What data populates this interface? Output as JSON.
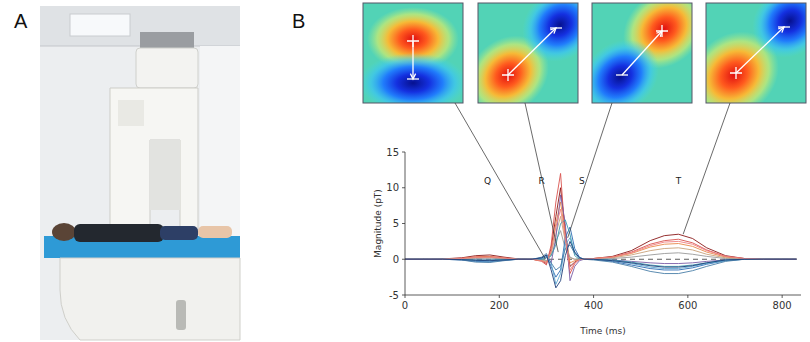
{
  "panel_labels": [
    "A",
    "B"
  ],
  "chart_data": {
    "type": "line",
    "x_label": "Time (ms)",
    "y_label": "Magnitude (pT)",
    "xlim": [
      0,
      840
    ],
    "xticks": [
      0,
      200,
      400,
      600,
      800
    ],
    "ylim": [
      -5,
      15
    ],
    "yticks": [
      -5,
      0,
      5,
      10,
      15
    ],
    "grid": false,
    "x": [
      0,
      40,
      80,
      120,
      150,
      180,
      210,
      240,
      270,
      290,
      300,
      310,
      320,
      330,
      340,
      350,
      360,
      370,
      380,
      400,
      440,
      480,
      520,
      550,
      580,
      610,
      640,
      680,
      720,
      760,
      800,
      830
    ],
    "series": [
      {
        "color": "#8b1a1a",
        "values": [
          0,
          0,
          0.05,
          0.2,
          0.5,
          0.6,
          0.3,
          0.05,
          0,
          -0.2,
          -0.6,
          1.5,
          6,
          10,
          4,
          -1,
          -0.4,
          0,
          0,
          0.1,
          0.4,
          1.2,
          2.6,
          3.3,
          3.5,
          2.9,
          1.6,
          0.5,
          0.1,
          0,
          0,
          0
        ]
      },
      {
        "color": "#d9534f",
        "values": [
          0,
          0,
          0.05,
          0.15,
          0.35,
          0.4,
          0.2,
          0,
          0,
          -0.3,
          -0.8,
          2,
          8,
          12,
          3,
          -2,
          -0.6,
          0,
          0,
          0.1,
          0.3,
          1,
          2.1,
          2.6,
          2.8,
          2.3,
          1.3,
          0.4,
          0.1,
          0,
          0,
          0
        ]
      },
      {
        "color": "#e8894a",
        "values": [
          0,
          0,
          0,
          0.1,
          0.3,
          0.35,
          0.15,
          0,
          0,
          -0.2,
          -0.4,
          1,
          5,
          8,
          3.5,
          -0.5,
          -0.2,
          0,
          0,
          0.1,
          0.3,
          0.8,
          1.7,
          2.1,
          2.2,
          1.8,
          1,
          0.3,
          0.05,
          0,
          0,
          0
        ]
      },
      {
        "color": "#c9a27a",
        "values": [
          0,
          0,
          0,
          0.05,
          0.2,
          0.25,
          0.1,
          0,
          0,
          -0.1,
          -0.3,
          0.8,
          3.5,
          6,
          2.5,
          0.2,
          0,
          0,
          0,
          0.05,
          0.2,
          0.6,
          1.2,
          1.5,
          1.6,
          1.3,
          0.7,
          0.2,
          0,
          0,
          0,
          0
        ]
      },
      {
        "color": "#9a9a9a",
        "values": [
          0,
          0,
          0,
          0,
          0.1,
          0.15,
          0.05,
          0,
          0,
          0,
          -0.2,
          0.5,
          2.5,
          4,
          1.5,
          0.3,
          0,
          0,
          0,
          0,
          0.1,
          0.3,
          0.6,
          0.8,
          0.9,
          0.7,
          0.4,
          0.1,
          0,
          0,
          0,
          0
        ]
      },
      {
        "color": "#7b5ea7",
        "values": [
          0,
          0,
          0,
          -0.05,
          -0.1,
          -0.1,
          -0.05,
          0,
          0,
          0.1,
          0.3,
          -0.5,
          3,
          9,
          5,
          -3,
          -1,
          -0.2,
          0,
          0,
          -0.1,
          -0.3,
          -0.5,
          -0.6,
          -0.6,
          -0.5,
          -0.3,
          -0.1,
          0,
          0,
          0,
          0
        ]
      },
      {
        "color": "#2f6db5",
        "values": [
          0,
          0,
          0,
          -0.1,
          -0.3,
          -0.35,
          -0.15,
          0,
          0,
          0.2,
          0.5,
          -1,
          -2.5,
          -1.5,
          3,
          4.5,
          1.5,
          0.3,
          0,
          0,
          -0.3,
          -0.8,
          -1.3,
          -1.5,
          -1.5,
          -1.2,
          -0.7,
          -0.2,
          0,
          0,
          0,
          0
        ]
      },
      {
        "color": "#5fa8d3",
        "values": [
          0,
          0,
          0,
          -0.05,
          -0.2,
          -0.25,
          -0.1,
          0,
          0,
          0.1,
          0.4,
          -0.5,
          -3.5,
          -2,
          2,
          3,
          1,
          0.2,
          0,
          0,
          -0.2,
          -0.6,
          -1.1,
          -1.3,
          -1.3,
          -1,
          -0.6,
          -0.2,
          0,
          0,
          0,
          0
        ]
      },
      {
        "color": "#3c9bb0",
        "values": [
          0,
          0,
          0,
          0,
          -0.1,
          -0.1,
          0,
          0,
          0,
          0,
          0.2,
          0.5,
          2,
          5,
          5.5,
          3.5,
          0.5,
          0,
          0,
          0,
          -0.1,
          -0.4,
          -0.8,
          -1,
          -1,
          -0.8,
          -0.5,
          -0.1,
          0,
          0,
          0,
          0
        ]
      },
      {
        "color": "#4a7fa8",
        "values": [
          0,
          0,
          0,
          -0.1,
          -0.4,
          -0.45,
          -0.2,
          0,
          0,
          0.3,
          0.8,
          -0.5,
          -1.5,
          -1,
          1.5,
          2,
          0.8,
          0.2,
          0,
          -0.1,
          -0.4,
          -1,
          -1.7,
          -2,
          -2,
          -1.6,
          -1,
          -0.3,
          0,
          0,
          0,
          0
        ]
      },
      {
        "color": "#f08080",
        "values": [
          0,
          0,
          0,
          0.1,
          0.25,
          0.3,
          0.15,
          0,
          0,
          -0.2,
          -0.5,
          1.2,
          4.5,
          7,
          3,
          -1.5,
          -0.5,
          0,
          0,
          0.1,
          0.3,
          0.9,
          1.9,
          2.4,
          2.5,
          2.1,
          1.2,
          0.4,
          0.1,
          0,
          0,
          0
        ]
      },
      {
        "color": "#1f3f7a",
        "values": [
          0,
          0,
          0,
          -0.05,
          -0.15,
          -0.2,
          -0.1,
          0,
          0,
          0.2,
          0.6,
          -1.5,
          -4,
          -3,
          0.5,
          2.5,
          1,
          0.2,
          0,
          0,
          -0.2,
          -0.5,
          -0.9,
          -1.1,
          -1.1,
          -0.9,
          -0.5,
          -0.1,
          0,
          0,
          0,
          0
        ]
      }
    ],
    "annotations": [
      {
        "text": "Q",
        "x": 175,
        "y": 10.5,
        "point": [
          298,
          0
        ]
      },
      {
        "text": "R",
        "x": 290,
        "y": 10.5,
        "point": [
          325,
          1
        ]
      },
      {
        "text": "S",
        "x": 375,
        "y": 10.5,
        "point": [
          345,
          3
        ]
      },
      {
        "text": "T",
        "x": 580,
        "y": 10.5,
        "point": [
          590,
          3.5
        ]
      }
    ]
  }
}
